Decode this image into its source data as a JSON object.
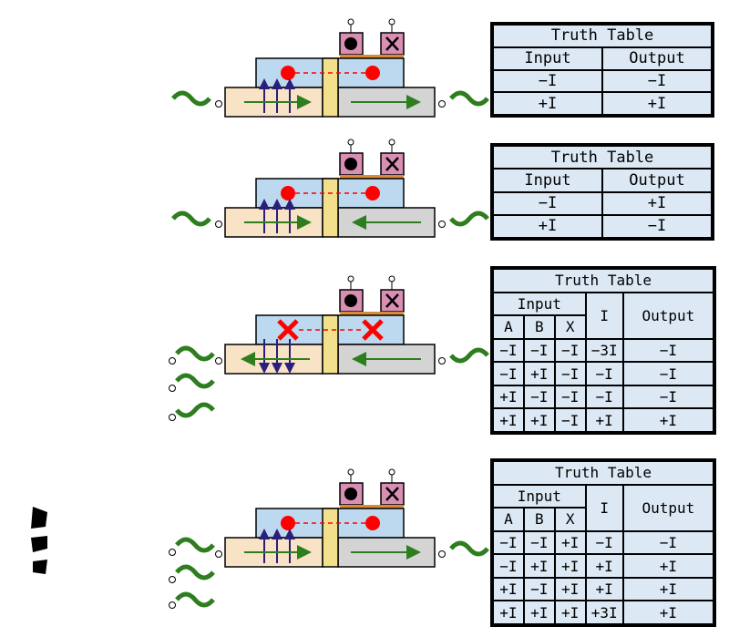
{
  "colors": {
    "waveguide": "#f9e3c6",
    "waveguide_right": "#d4d4d4",
    "ring_box": "#bcd9ef",
    "coupler": "#f3e08c",
    "pad": "#d98fb3",
    "electrode": "#d98b3a",
    "dot": "#ff0000",
    "arrow_green": "#2e7d1e",
    "arrow_purple": "#2a1f7a",
    "table_bg": "#dce9f5"
  },
  "icons": [
    "bullet-dot-icon",
    "cross-icon",
    "red-x-icon"
  ],
  "tables": [
    {
      "title": "Truth Table",
      "headers": [
        "Input",
        "Output"
      ],
      "rows": [
        [
          "−I",
          "−I"
        ],
        [
          "+I",
          "+I"
        ]
      ]
    },
    {
      "title": "Truth Table",
      "headers": [
        "Input",
        "Output"
      ],
      "rows": [
        [
          "−I",
          "+I"
        ],
        [
          "+I",
          "−I"
        ]
      ]
    },
    {
      "title": "Truth Table",
      "group_header": "Input",
      "sub_headers": [
        "A",
        "B",
        "X"
      ],
      "i_header": "I",
      "output_header": "Output",
      "rows": [
        [
          "−I",
          "−I",
          "−I",
          "−3I",
          "−I"
        ],
        [
          "−I",
          "+I",
          "−I",
          "−I",
          "−I"
        ],
        [
          "+I",
          "−I",
          "−I",
          "−I",
          "−I"
        ],
        [
          "+I",
          "+I",
          "−I",
          "+I",
          "+I"
        ]
      ]
    },
    {
      "title": "Truth Table",
      "group_header": "Input",
      "sub_headers": [
        "A",
        "B",
        "X"
      ],
      "i_header": "I",
      "output_header": "Output",
      "rows": [
        [
          "−I",
          "−I",
          "+I",
          "−I",
          "−I"
        ],
        [
          "−I",
          "+I",
          "+I",
          "+I",
          "+I"
        ],
        [
          "+I",
          "−I",
          "+I",
          "+I",
          "+I"
        ],
        [
          "+I",
          "+I",
          "+I",
          "+3I",
          "+I"
        ]
      ]
    }
  ]
}
